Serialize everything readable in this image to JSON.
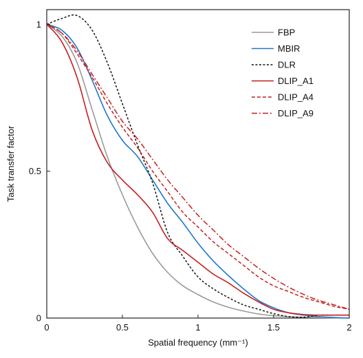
{
  "chart_data": {
    "type": "line",
    "title": "",
    "xlabel": "Spatial frequency (mm⁻¹)",
    "ylabel": "Task transfer factor",
    "xlim": [
      0,
      2
    ],
    "ylim": [
      0,
      1.05
    ],
    "xticks": [
      {
        "value": 0,
        "label": "0"
      },
      {
        "value": 0.5,
        "label": "0.5"
      },
      {
        "value": 1,
        "label": "1"
      },
      {
        "value": 1.5,
        "label": "1.5"
      },
      {
        "value": 2,
        "label": "2"
      }
    ],
    "yticks": [
      {
        "value": 0,
        "label": "0"
      },
      {
        "value": 0.5,
        "label": "0.5"
      },
      {
        "value": 1,
        "label": "1"
      }
    ],
    "grid": false,
    "legend_position": "top-right",
    "x": [
      0,
      0.1,
      0.2,
      0.3,
      0.4,
      0.5,
      0.6,
      0.7,
      0.8,
      0.9,
      1.0,
      1.1,
      1.2,
      1.3,
      1.4,
      1.5,
      1.6,
      1.7,
      1.8,
      1.9,
      2.0
    ],
    "series": [
      {
        "name": "FBP",
        "color": "#9a9a9a",
        "dash": "solid",
        "values": [
          1.0,
          0.96,
          0.87,
          0.71,
          0.55,
          0.42,
          0.31,
          0.22,
          0.155,
          0.11,
          0.08,
          0.055,
          0.037,
          0.024,
          0.014,
          0.008,
          0.005,
          0.003,
          0.002,
          0.001,
          0.0
        ]
      },
      {
        "name": "MBIR",
        "color": "#1f77c9",
        "dash": "solid",
        "values": [
          1.0,
          0.98,
          0.92,
          0.81,
          0.69,
          0.605,
          0.55,
          0.47,
          0.39,
          0.325,
          0.255,
          0.195,
          0.145,
          0.1,
          0.06,
          0.035,
          0.018,
          0.01,
          0.005,
          0.002,
          0.0
        ]
      },
      {
        "name": "DLR",
        "color": "#111111",
        "dash": "dot",
        "values": [
          1.0,
          1.02,
          1.03,
          0.98,
          0.87,
          0.73,
          0.59,
          0.46,
          0.29,
          0.21,
          0.14,
          0.1,
          0.07,
          0.045,
          0.03,
          0.015,
          0.005,
          0.003,
          0.01,
          0.01,
          0.01
        ]
      },
      {
        "name": "DLIP_A1",
        "color": "#c41e1e",
        "dash": "solid",
        "values": [
          1.0,
          0.94,
          0.82,
          0.64,
          0.53,
          0.47,
          0.42,
          0.36,
          0.27,
          0.23,
          0.19,
          0.15,
          0.12,
          0.085,
          0.055,
          0.03,
          0.018,
          0.012,
          0.01,
          0.01,
          0.01
        ]
      },
      {
        "name": "DLIP_A4",
        "color": "#c41e1e",
        "dash": "dash",
        "values": [
          1.0,
          0.97,
          0.9,
          0.82,
          0.73,
          0.65,
          0.58,
          0.5,
          0.43,
          0.36,
          0.31,
          0.26,
          0.22,
          0.18,
          0.14,
          0.11,
          0.09,
          0.07,
          0.055,
          0.04,
          0.03
        ]
      },
      {
        "name": "DLIP_A9",
        "color": "#c41e1e",
        "dash": "dashdot",
        "values": [
          1.0,
          0.97,
          0.91,
          0.83,
          0.75,
          0.67,
          0.61,
          0.54,
          0.47,
          0.41,
          0.35,
          0.3,
          0.25,
          0.21,
          0.17,
          0.135,
          0.105,
          0.08,
          0.06,
          0.045,
          0.03
        ]
      }
    ]
  }
}
